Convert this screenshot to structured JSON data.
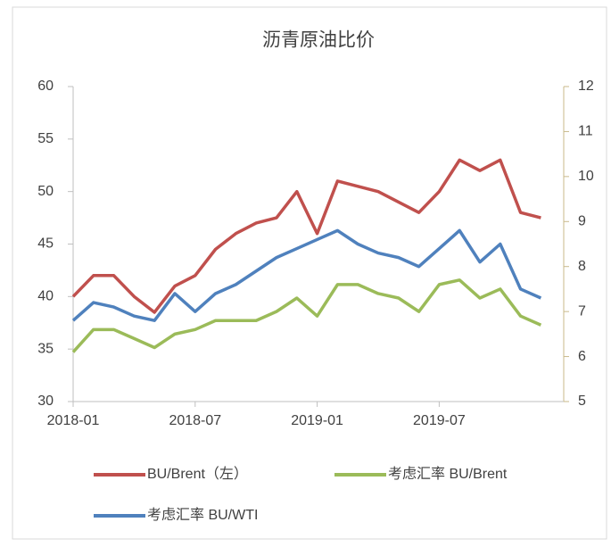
{
  "chart_data": {
    "type": "line",
    "title": "沥青原油比价",
    "x": [
      "2018-01",
      "2018-02",
      "2018-03",
      "2018-04",
      "2018-05",
      "2018-06",
      "2018-07",
      "2018-08",
      "2018-09",
      "2018-10",
      "2018-11",
      "2018-12",
      "2019-01",
      "2019-02",
      "2019-03",
      "2019-04",
      "2019-05",
      "2019-06",
      "2019-07",
      "2019-08",
      "2019-09",
      "2019-10",
      "2019-11",
      "2019-12"
    ],
    "xticks": [
      "2018-01",
      "2018-07",
      "2019-01",
      "2019-07"
    ],
    "ylim": [
      30,
      60
    ],
    "yticks": [
      30,
      35,
      40,
      45,
      50,
      55,
      60
    ],
    "y2lim": [
      5,
      12
    ],
    "y2ticks": [
      5,
      6,
      7,
      8,
      9,
      10,
      11,
      12
    ],
    "series": [
      {
        "name": "BU/Brent（左）",
        "color": "#c0504d",
        "values": [
          40,
          42,
          42,
          40,
          38.5,
          41,
          42,
          44.5,
          46,
          47,
          47.5,
          50,
          46,
          51,
          50.5,
          50,
          49,
          48,
          50,
          53,
          52,
          53,
          48,
          47.5
        ]
      },
      {
        "name": "考虑汇率 BU/Brent",
        "color": "#9bbb59",
        "axis": "y2",
        "values": [
          6.1,
          6.6,
          6.6,
          6.4,
          6.2,
          6.5,
          6.6,
          6.8,
          6.8,
          6.8,
          7.0,
          7.3,
          6.9,
          7.6,
          7.6,
          7.4,
          7.3,
          7.0,
          7.6,
          7.7,
          7.3,
          7.5,
          6.9,
          6.7
        ]
      },
      {
        "name": "考虑汇率 BU/WTI",
        "color": "#4f81bd",
        "axis": "y2",
        "values": [
          6.8,
          7.2,
          7.1,
          6.9,
          6.8,
          7.4,
          7.0,
          7.4,
          7.6,
          7.9,
          8.2,
          8.4,
          8.6,
          8.8,
          8.5,
          8.3,
          8.2,
          8.0,
          8.4,
          8.8,
          8.1,
          8.5,
          7.5,
          7.3
        ]
      }
    ]
  }
}
